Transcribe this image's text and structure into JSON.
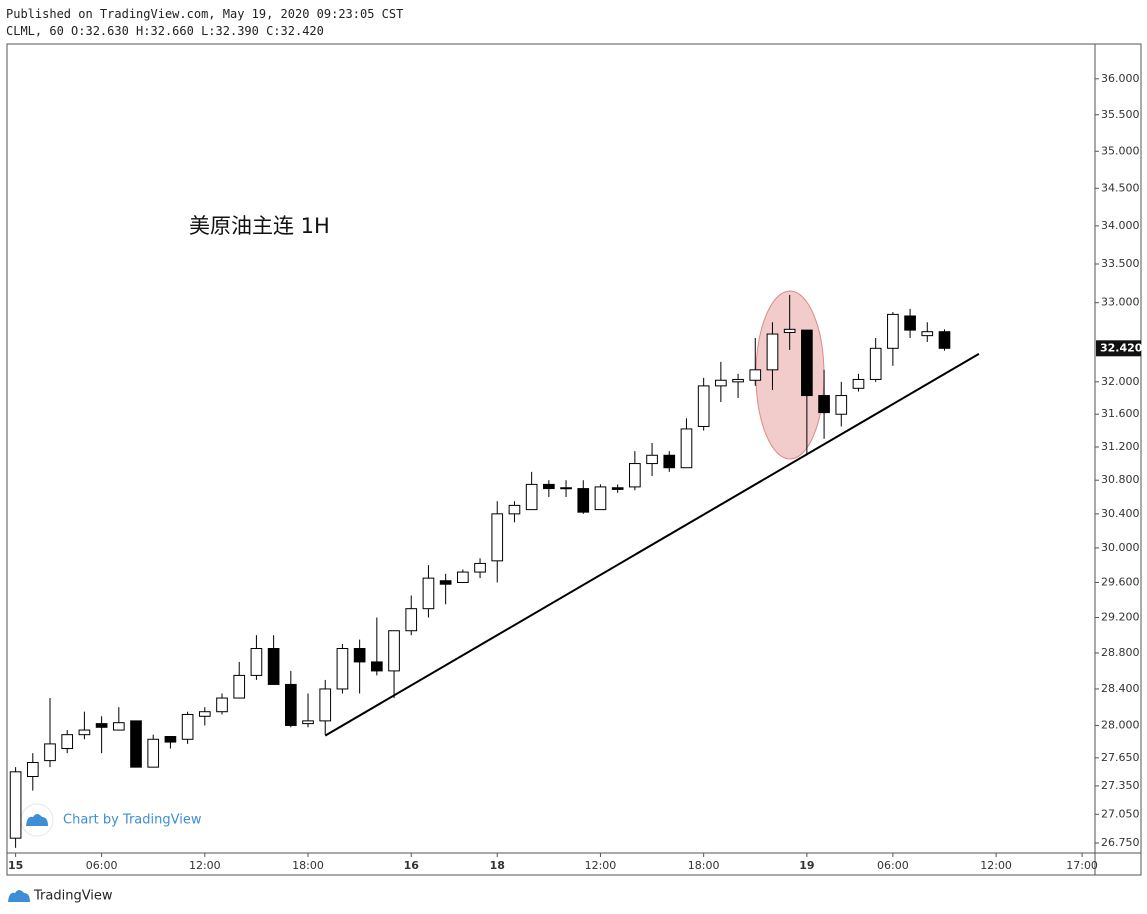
{
  "header": {
    "published": "Published on TradingView.com, May 19, 2020 09:23:05 CST",
    "symbol_line": "CLML, 60 O:32.630 H:32.660 L:32.390 C:32.420"
  },
  "watermark": "Chart by TradingView",
  "footer": "TradingView",
  "chart_data": {
    "type": "candlestick",
    "title": "美原油主连 1H",
    "log_scale": true,
    "up_color": "#ffffff",
    "down_color": "#000000",
    "wick_color": "#000000",
    "open": [
      26.8,
      27.45,
      27.62,
      27.75,
      27.9,
      28.02,
      27.95,
      28.05,
      27.55,
      27.88,
      27.85,
      28.1,
      28.15,
      28.3,
      28.55,
      28.85,
      28.45,
      28.02,
      28.05,
      28.4,
      28.85,
      28.7,
      28.6,
      29.05,
      29.3,
      29.62,
      29.6,
      29.72,
      29.85,
      30.4,
      30.45,
      30.75,
      30.71,
      30.7,
      30.45,
      30.71,
      30.72,
      31.0,
      31.1,
      30.95,
      31.45,
      31.95,
      32.0,
      32.02,
      32.15,
      32.62,
      32.65,
      31.83,
      31.6,
      31.92,
      32.03,
      32.42,
      32.83,
      32.58,
      32.63
    ],
    "high": [
      27.55,
      27.7,
      28.3,
      27.95,
      28.15,
      28.1,
      28.2,
      28.05,
      27.9,
      27.88,
      28.15,
      28.2,
      28.35,
      28.7,
      29.0,
      29.0,
      28.6,
      28.35,
      28.5,
      28.9,
      28.95,
      29.2,
      29.05,
      29.45,
      29.8,
      29.7,
      29.75,
      29.88,
      30.55,
      30.55,
      30.9,
      30.8,
      30.8,
      30.8,
      30.75,
      30.75,
      31.15,
      31.25,
      31.15,
      31.55,
      32.05,
      32.25,
      32.1,
      32.55,
      32.75,
      33.1,
      32.65,
      32.15,
      32.0,
      32.1,
      32.55,
      32.88,
      32.92,
      32.75,
      32.66
    ],
    "low": [
      26.7,
      27.3,
      27.55,
      27.7,
      27.85,
      27.7,
      27.95,
      27.55,
      27.55,
      27.75,
      27.8,
      28.0,
      28.12,
      28.3,
      28.5,
      28.45,
      27.98,
      27.98,
      27.9,
      28.35,
      28.35,
      28.55,
      28.3,
      29.0,
      29.2,
      29.35,
      29.6,
      29.65,
      29.6,
      30.3,
      30.45,
      30.6,
      30.6,
      30.4,
      30.45,
      30.65,
      30.68,
      30.85,
      30.9,
      30.95,
      31.4,
      31.75,
      31.8,
      31.95,
      31.9,
      32.4,
      31.1,
      31.3,
      31.45,
      31.88,
      32.0,
      32.2,
      32.55,
      32.5,
      32.39
    ],
    "close": [
      27.5,
      27.6,
      27.8,
      27.9,
      27.95,
      27.98,
      28.03,
      27.55,
      27.85,
      27.82,
      28.12,
      28.15,
      28.3,
      28.55,
      28.85,
      28.45,
      28.0,
      28.05,
      28.4,
      28.85,
      28.7,
      28.6,
      29.05,
      29.3,
      29.65,
      29.58,
      29.72,
      29.82,
      30.4,
      30.5,
      30.75,
      30.7,
      30.7,
      30.42,
      30.72,
      30.69,
      31.0,
      31.1,
      30.95,
      31.42,
      31.95,
      32.02,
      32.03,
      32.15,
      32.6,
      32.66,
      31.83,
      31.62,
      31.83,
      32.03,
      32.42,
      32.85,
      32.65,
      32.63,
      32.42
    ],
    "xlim": [
      -0.5,
      62.75
    ],
    "xticks": [
      {
        "value": 0,
        "label": "15"
      },
      {
        "value": 5,
        "label": "06:00"
      },
      {
        "value": 11,
        "label": "12:00"
      },
      {
        "value": 17,
        "label": "18:00"
      },
      {
        "value": 23,
        "label": "16"
      },
      {
        "value": 28,
        "label": "18"
      },
      {
        "value": 34,
        "label": "12:00"
      },
      {
        "value": 40,
        "label": "18:00"
      },
      {
        "value": 46,
        "label": "19"
      },
      {
        "value": 51,
        "label": "06:00"
      },
      {
        "value": 57,
        "label": "12:00"
      },
      {
        "value": 62,
        "label": "17:00"
      }
    ],
    "ylim": [
      26.646,
      36.49
    ],
    "yticks": [
      {
        "value": 36,
        "label": "36.000"
      },
      {
        "value": 35.5,
        "label": "35.500"
      },
      {
        "value": 35,
        "label": "35.000"
      },
      {
        "value": 34.5,
        "label": "34.500"
      },
      {
        "value": 34,
        "label": "34.000"
      },
      {
        "value": 33.5,
        "label": "33.500"
      },
      {
        "value": 33,
        "label": "33.000"
      },
      {
        "value": 32,
        "label": "32.000"
      },
      {
        "value": 31.6,
        "label": "31.600"
      },
      {
        "value": 31.2,
        "label": "31.200"
      },
      {
        "value": 30.8,
        "label": "30.800"
      },
      {
        "value": 30.4,
        "label": "30.400"
      },
      {
        "value": 30,
        "label": "30.000"
      },
      {
        "value": 29.6,
        "label": "29.600"
      },
      {
        "value": 29.2,
        "label": "29.200"
      },
      {
        "value": 28.8,
        "label": "28.800"
      },
      {
        "value": 28.4,
        "label": "28.400"
      },
      {
        "value": 28,
        "label": "28.000"
      },
      {
        "value": 27.65,
        "label": "27.650"
      },
      {
        "value": 27.35,
        "label": "27.350"
      },
      {
        "value": 27.05,
        "label": "27.050"
      },
      {
        "value": 26.75,
        "label": "26.750"
      }
    ],
    "last_price": {
      "value": 32.42,
      "label": "32.420"
    },
    "trendline": {
      "x": [
        18,
        56
      ],
      "y": [
        27.89,
        32.35
      ]
    }
  }
}
